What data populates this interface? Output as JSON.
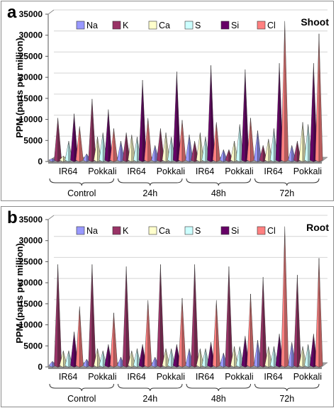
{
  "chart_data": [
    {
      "panel_label": "a",
      "type": "bar",
      "title": "Shoot",
      "ylabel": "PPM (parts per million)",
      "ylim": [
        0,
        35000
      ],
      "y_ticks": [
        "0",
        "5000",
        "10000",
        "15000",
        "20000",
        "25000",
        "30000",
        "35000"
      ],
      "categories": [
        "IR64",
        "Pokkali",
        "IR64",
        "Pokkali",
        "IR64",
        "Pokkali",
        "IR64",
        "Pokkali"
      ],
      "groups": [
        {
          "label": "Control",
          "span": [
            0,
            1
          ]
        },
        {
          "label": "24h",
          "span": [
            2,
            3
          ]
        },
        {
          "label": "48h",
          "span": [
            4,
            5
          ]
        },
        {
          "label": "72h",
          "span": [
            6,
            7
          ]
        }
      ],
      "series": [
        {
          "name": "Na",
          "color": "#9999ff",
          "values": [
            400,
            1500,
            4500,
            3500,
            6000,
            2500,
            7000,
            3500
          ]
        },
        {
          "name": "K",
          "color": "#993366",
          "values": [
            10000,
            14500,
            6500,
            7500,
            4500,
            2500,
            3500,
            4500
          ]
        },
        {
          "name": "Ca",
          "color": "#ffffcc",
          "values": [
            1000,
            5500,
            6000,
            6500,
            6500,
            4500,
            5000,
            9000
          ]
        },
        {
          "name": "S",
          "color": "#ccffff",
          "values": [
            4500,
            6500,
            5500,
            5500,
            5500,
            8500,
            7500,
            8500
          ]
        },
        {
          "name": "Si",
          "color": "#660066",
          "values": [
            11000,
            12000,
            19000,
            21000,
            22500,
            21500,
            23000,
            23000
          ]
        },
        {
          "name": "Cl",
          "color": "#ff8080",
          "values": [
            8000,
            7500,
            10000,
            9500,
            9000,
            10000,
            33000,
            30000
          ]
        }
      ],
      "legend_position": "top"
    },
    {
      "panel_label": "b",
      "type": "bar",
      "title": "Root",
      "ylabel": "PPM (parts per million)",
      "ylim": [
        0,
        35000
      ],
      "y_ticks": [
        "0",
        "5000",
        "10000",
        "15000",
        "20000",
        "25000",
        "30000",
        "35000"
      ],
      "categories": [
        "IR64",
        "Pokkali",
        "IR64",
        "Pokkali",
        "IR64",
        "Pokkali",
        "IR64",
        "Pokkali"
      ],
      "groups": [
        {
          "label": "Control",
          "span": [
            0,
            1
          ]
        },
        {
          "label": "24h",
          "span": [
            2,
            3
          ]
        },
        {
          "label": "48h",
          "span": [
            4,
            5
          ]
        },
        {
          "label": "72h",
          "span": [
            6,
            7
          ]
        }
      ],
      "series": [
        {
          "name": "Na",
          "color": "#9999ff",
          "values": [
            1000,
            1500,
            2000,
            2000,
            4000,
            3000,
            6000,
            5500
          ]
        },
        {
          "name": "K",
          "color": "#993366",
          "values": [
            24000,
            24000,
            23500,
            24000,
            24000,
            23500,
            21000,
            21500
          ]
        },
        {
          "name": "Ca",
          "color": "#ffffcc",
          "values": [
            3500,
            4000,
            3500,
            4000,
            4000,
            4500,
            4500,
            4500
          ]
        },
        {
          "name": "S",
          "color": "#ccffff",
          "values": [
            3500,
            3500,
            4000,
            4000,
            4000,
            4500,
            4500,
            5000
          ]
        },
        {
          "name": "Si",
          "color": "#660066",
          "values": [
            8000,
            5000,
            5000,
            5000,
            5500,
            7000,
            7500,
            7500
          ]
        },
        {
          "name": "Cl",
          "color": "#ff8080",
          "values": [
            14000,
            12500,
            15500,
            16000,
            15500,
            17000,
            33000,
            25500
          ]
        }
      ],
      "legend_position": "top"
    }
  ]
}
